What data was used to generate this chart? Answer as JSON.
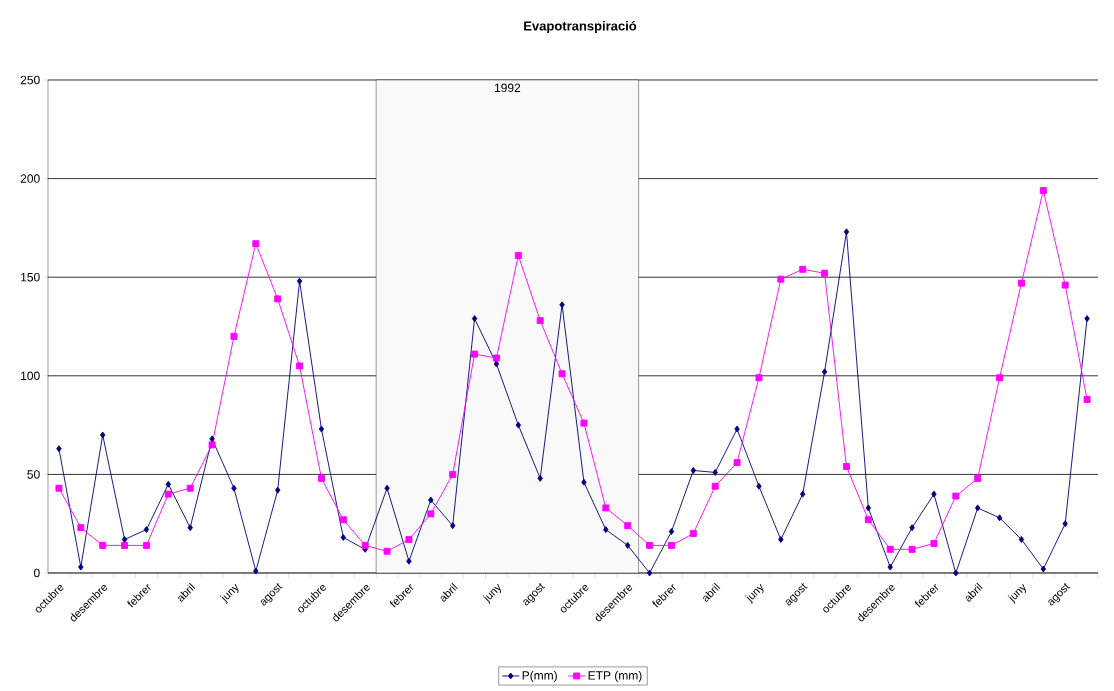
{
  "chart_data": {
    "type": "line",
    "title": "Evapotranspiració",
    "categories": [
      "octubre",
      null,
      "desembre",
      null,
      "febrer",
      null,
      "abril",
      null,
      "juny",
      null,
      "agost",
      null,
      "octubre",
      null,
      "desembre",
      null,
      "febrer",
      null,
      "abril",
      null,
      "juny",
      null,
      "agost",
      null,
      "octubre",
      null,
      "desembre",
      null,
      "febrer",
      null,
      "abril",
      null,
      "juny",
      null,
      "agost",
      null,
      "octubre",
      null,
      "desembre",
      null,
      "febrer",
      null,
      "abril",
      null,
      "juny",
      null,
      "agost",
      null
    ],
    "series": [
      {
        "name": "P(mm)",
        "color": "#000080",
        "marker": "diamond",
        "values": [
          63,
          3,
          70,
          17,
          22,
          45,
          23,
          68,
          43,
          1,
          42,
          148,
          73,
          18,
          12,
          43,
          6,
          37,
          24,
          129,
          106,
          75,
          48,
          136,
          46,
          22,
          14,
          0,
          21,
          52,
          51,
          73,
          44,
          17,
          40,
          102,
          173,
          33,
          3,
          23,
          40,
          0,
          33,
          28,
          17,
          2,
          25,
          129
        ]
      },
      {
        "name": "ETP (mm)",
        "color": "#ff00ff",
        "marker": "square",
        "values": [
          43,
          23,
          14,
          14,
          14,
          40,
          43,
          65,
          120,
          167,
          139,
          105,
          48,
          27,
          14,
          11,
          17,
          30,
          50,
          111,
          109,
          161,
          128,
          101,
          76,
          33,
          24,
          14,
          14,
          20,
          44,
          56,
          99,
          149,
          154,
          152,
          54,
          27,
          12,
          12,
          15,
          39,
          48,
          99,
          147,
          194,
          146,
          88
        ]
      }
    ],
    "ylim": [
      0,
      250
    ],
    "yticks": [
      0,
      50,
      100,
      150,
      200,
      250
    ],
    "grid": "y",
    "legend": "bottom",
    "annotations": [
      "1992"
    ]
  }
}
